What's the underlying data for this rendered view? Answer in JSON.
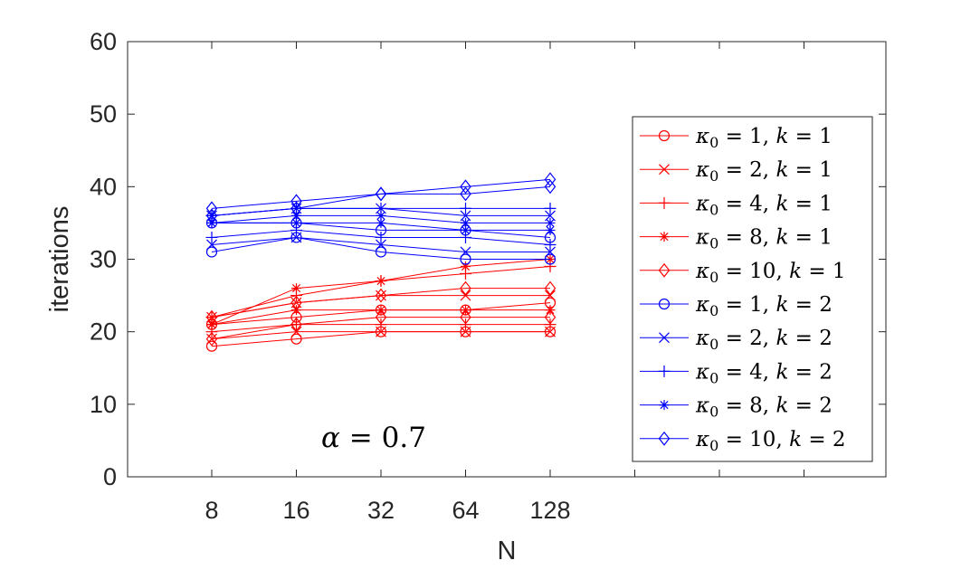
{
  "chart_data": {
    "type": "line",
    "title": "",
    "xlabel": "N",
    "ylabel": "iterations",
    "x_scale": "log2",
    "x": [
      8,
      16,
      32,
      64,
      128
    ],
    "x_tick_labels": [
      "8",
      "16",
      "32",
      "64",
      "128"
    ],
    "ylim": [
      0,
      60
    ],
    "y_ticks": [
      0,
      10,
      20,
      30,
      40,
      50,
      60
    ],
    "y_tick_labels": [
      "0",
      "10",
      "20",
      "30",
      "40",
      "50",
      "60"
    ],
    "grid": false,
    "annotation": {
      "text": "α = 0.7"
    },
    "legend": {
      "placement": "right"
    },
    "series": [
      {
        "name": "κ0 = 1, k = 1",
        "kappa": "1",
        "k": "1",
        "color": "#ff0000",
        "marker": "circle",
        "values": [
          18,
          19,
          20,
          20,
          20
        ]
      },
      {
        "name": "κ0 = 2, k = 1",
        "kappa": "2",
        "k": "1",
        "color": "#ff0000",
        "marker": "x",
        "values": [
          19,
          20,
          20,
          20,
          20
        ]
      },
      {
        "name": "κ0 = 4, k = 1",
        "kappa": "4",
        "k": "1",
        "color": "#ff0000",
        "marker": "plus",
        "values": [
          20,
          21,
          21,
          21,
          21
        ]
      },
      {
        "name": "κ0 = 8, k = 1",
        "kappa": "8",
        "k": "1",
        "color": "#ff0000",
        "marker": "star",
        "values": [
          21,
          23,
          23,
          23,
          23
        ]
      },
      {
        "name": "κ0 = 10, k = 1",
        "kappa": "10",
        "k": "1",
        "color": "#ff0000",
        "marker": "diamond",
        "values": [
          22,
          24,
          25,
          26,
          26
        ]
      },
      {
        "name": "κ0 = 1, k = 2",
        "kappa": "1",
        "k": "2",
        "color": "#0000ff",
        "marker": "circle",
        "values": [
          31,
          33,
          31,
          30,
          30
        ]
      },
      {
        "name": "κ0 = 2, k = 2",
        "kappa": "2",
        "k": "2",
        "color": "#0000ff",
        "marker": "x",
        "values": [
          32,
          33,
          32,
          31,
          31
        ]
      },
      {
        "name": "κ0 = 4, k = 2",
        "kappa": "4",
        "k": "2",
        "color": "#0000ff",
        "marker": "plus",
        "values": [
          33,
          34,
          33,
          33,
          32
        ]
      },
      {
        "name": "κ0 = 8, k = 2",
        "kappa": "8",
        "k": "2",
        "color": "#0000ff",
        "marker": "star",
        "values": [
          35,
          36,
          36,
          35,
          35
        ]
      },
      {
        "name": "κ0 = 10, k = 2",
        "kappa": "10",
        "k": "2",
        "color": "#0000ff",
        "marker": "diamond",
        "values": [
          37,
          38,
          39,
          40,
          41
        ]
      }
    ],
    "extra_lines_k1": [
      [
        21,
        22,
        23,
        23,
        24
      ],
      [
        22,
        24,
        25,
        25,
        25
      ],
      [
        22,
        25,
        27,
        28,
        29
      ],
      [
        21,
        26,
        27,
        29,
        30
      ],
      [
        19,
        21,
        22,
        22,
        22
      ]
    ],
    "extra_lines_k2": [
      [
        35,
        35,
        34,
        34,
        33
      ],
      [
        36,
        37,
        37,
        36,
        36
      ],
      [
        36,
        37,
        37,
        37,
        37
      ],
      [
        35,
        35,
        35,
        34,
        34
      ],
      [
        36,
        37,
        39,
        39,
        40
      ]
    ]
  }
}
